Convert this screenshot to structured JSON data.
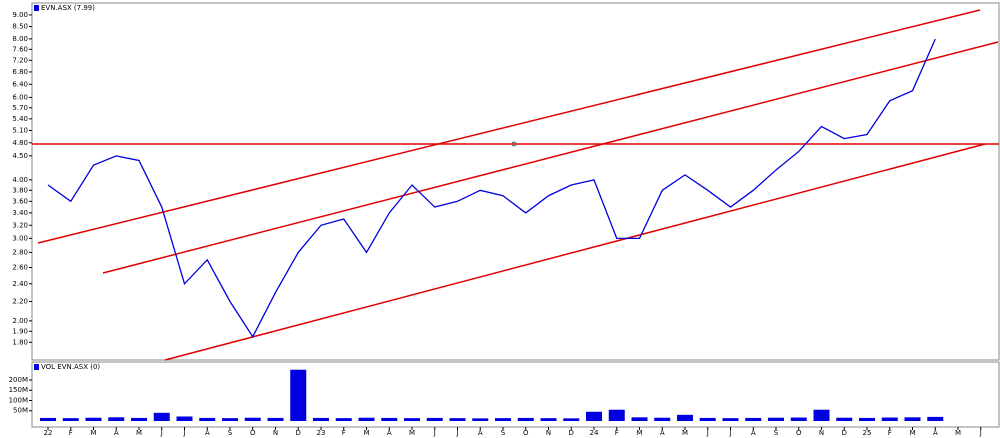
{
  "chart_data": [
    {
      "type": "line",
      "legend": "EVN.ASX (7.99)",
      "color": "#0000e0",
      "log_scale": true,
      "categories": [
        "22",
        "F",
        "M",
        "A",
        "M",
        "J",
        "J",
        "A",
        "S",
        "O",
        "N",
        "D",
        "23",
        "F",
        "M",
        "A",
        "M",
        "J",
        "J",
        "A",
        "S",
        "O",
        "N",
        "D",
        "24",
        "F",
        "M",
        "A",
        "M",
        "J",
        "J",
        "A",
        "S",
        "O",
        "N",
        "D",
        "25",
        "F",
        "M",
        "A",
        "M",
        "J"
      ],
      "values": [
        3.9,
        3.6,
        4.3,
        4.5,
        4.4,
        3.5,
        2.4,
        2.7,
        2.2,
        1.85,
        2.3,
        2.8,
        3.2,
        3.3,
        2.8,
        3.4,
        3.9,
        3.5,
        3.6,
        3.8,
        3.7,
        3.4,
        3.7,
        3.9,
        4.0,
        3.0,
        3.0,
        3.8,
        4.1,
        3.8,
        3.5,
        3.8,
        4.2,
        4.6,
        5.2,
        4.9,
        5.0,
        5.9,
        6.2,
        7.99,
        null,
        null
      ],
      "ylim": [
        1.65,
        9.45
      ],
      "yticks": [
        {
          "value": 1.8,
          "label": "1.80"
        },
        {
          "value": 1.9,
          "label": "1.90"
        },
        {
          "value": 2,
          "label": "2.00"
        },
        {
          "value": 2.2,
          "label": "2.20"
        },
        {
          "value": 2.4,
          "label": "2.40"
        },
        {
          "value": 2.6,
          "label": "2.60"
        },
        {
          "value": 2.8,
          "label": "2.80"
        },
        {
          "value": 3,
          "label": "3.00"
        },
        {
          "value": 3.2,
          "label": "3.20"
        },
        {
          "value": 3.4,
          "label": "3.40"
        },
        {
          "value": 3.6,
          "label": "3.60"
        },
        {
          "value": 3.8,
          "label": "3.80"
        },
        {
          "value": 4,
          "label": "4.00"
        },
        {
          "value": 4.5,
          "label": "4.50"
        },
        {
          "value": 4.8,
          "label": "4.80"
        },
        {
          "value": 5.1,
          "label": "5.10"
        },
        {
          "value": 5.4,
          "label": "5.40"
        },
        {
          "value": 5.7,
          "label": "5.70"
        },
        {
          "value": 6,
          "label": "6.00"
        },
        {
          "value": 6.4,
          "label": "6.40"
        },
        {
          "value": 6.8,
          "label": "6.80"
        },
        {
          "value": 7.2,
          "label": "7.20"
        },
        {
          "value": 7.6,
          "label": "7.60"
        },
        {
          "value": 8,
          "label": "8.00"
        },
        {
          "value": 8.5,
          "label": "8.50"
        },
        {
          "value": 9,
          "label": "9.00"
        }
      ]
    },
    {
      "type": "bar",
      "legend": "VOL EVN.ASX (0)",
      "color": "#0000e0",
      "values": [
        15000000,
        14000000,
        16000000,
        18000000,
        15000000,
        40000000,
        22000000,
        15000000,
        14000000,
        16000000,
        15000000,
        250000000,
        15000000,
        14000000,
        16000000,
        15000000,
        14000000,
        15000000,
        14000000,
        13000000,
        14000000,
        15000000,
        14000000,
        13000000,
        45000000,
        55000000,
        18000000,
        16000000,
        30000000,
        15000000,
        14000000,
        15000000,
        16000000,
        17000000,
        55000000,
        16000000,
        15000000,
        17000000,
        18000000,
        20000000,
        null,
        null
      ],
      "ylim": [
        0,
        273000000
      ],
      "yticks": [
        {
          "value": 50000000,
          "label": "50M"
        },
        {
          "value": 100000000,
          "label": "100M"
        },
        {
          "value": 150000000,
          "label": "150M"
        },
        {
          "value": 200000000,
          "label": "200M"
        }
      ]
    }
  ]
}
